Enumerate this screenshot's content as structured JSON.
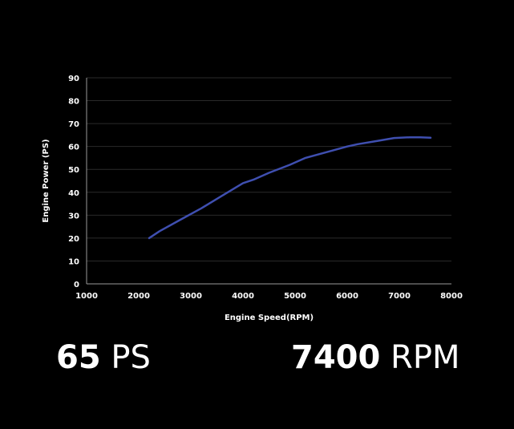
{
  "chart_data": {
    "type": "line",
    "xlabel": "Engine Speed(RPM)",
    "ylabel": "Engine Power (PS)",
    "xlim": [
      1000,
      8000
    ],
    "ylim": [
      0,
      90
    ],
    "x_ticks": [
      "1000",
      "2000",
      "3000",
      "4000",
      "5000",
      "6000",
      "7000",
      "8000"
    ],
    "y_ticks": [
      "0",
      "10",
      "20",
      "30",
      "40",
      "50",
      "60",
      "70",
      "80",
      "90"
    ],
    "grid": true,
    "series": [
      {
        "color": "#3f4fb0",
        "x": [
          2200,
          2400,
          2800,
          3200,
          3600,
          4000,
          4200,
          4500,
          4900,
          5200,
          5600,
          6000,
          6200,
          6600,
          6900,
          7200,
          7400,
          7600
        ],
        "y": [
          20,
          23,
          28,
          33,
          38.5,
          44,
          45.5,
          48.5,
          52,
          55,
          57.5,
          60,
          61,
          62.5,
          63.7,
          64,
          64,
          63.8
        ]
      }
    ]
  },
  "stats": {
    "power_value": "65",
    "power_unit": "PS",
    "speed_value": "7400",
    "speed_unit": "RPM"
  }
}
